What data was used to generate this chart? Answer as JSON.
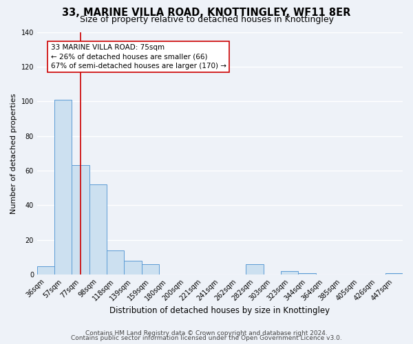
{
  "title": "33, MARINE VILLA ROAD, KNOTTINGLEY, WF11 8ER",
  "subtitle": "Size of property relative to detached houses in Knottingley",
  "xlabel": "Distribution of detached houses by size in Knottingley",
  "ylabel": "Number of detached properties",
  "bin_labels": [
    "36sqm",
    "57sqm",
    "77sqm",
    "98sqm",
    "118sqm",
    "139sqm",
    "159sqm",
    "180sqm",
    "200sqm",
    "221sqm",
    "241sqm",
    "262sqm",
    "282sqm",
    "303sqm",
    "323sqm",
    "344sqm",
    "364sqm",
    "385sqm",
    "405sqm",
    "426sqm",
    "447sqm"
  ],
  "bar_values": [
    5,
    101,
    63,
    52,
    14,
    8,
    6,
    0,
    0,
    0,
    0,
    0,
    6,
    0,
    2,
    1,
    0,
    0,
    0,
    0,
    1
  ],
  "bar_color": "#cce0f0",
  "bar_edge_color": "#5b9bd5",
  "ylim": [
    0,
    140
  ],
  "yticks": [
    0,
    20,
    40,
    60,
    80,
    100,
    120,
    140
  ],
  "property_line_x": 2,
  "property_line_color": "#cc0000",
  "annotation_title": "33 MARINE VILLA ROAD: 75sqm",
  "annotation_line1": "← 26% of detached houses are smaller (66)",
  "annotation_line2": "67% of semi-detached houses are larger (170) →",
  "annotation_box_color": "#ffffff",
  "annotation_box_edge": "#cc0000",
  "footer1": "Contains HM Land Registry data © Crown copyright and database right 2024.",
  "footer2": "Contains public sector information licensed under the Open Government Licence v3.0.",
  "background_color": "#eef2f8",
  "grid_color": "#ffffff",
  "title_fontsize": 10.5,
  "subtitle_fontsize": 9,
  "xlabel_fontsize": 8.5,
  "ylabel_fontsize": 8,
  "tick_fontsize": 7,
  "annotation_fontsize": 7.5,
  "footer_fontsize": 6.5
}
